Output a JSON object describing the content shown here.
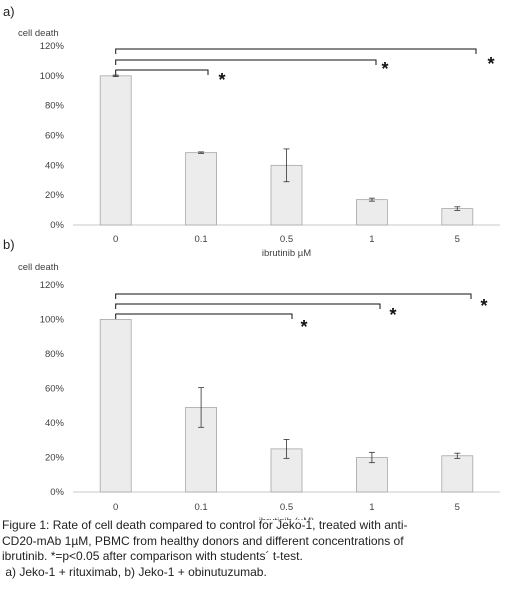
{
  "chart_data": [
    {
      "panel": "a)",
      "type": "bar",
      "ylabel": "cell death",
      "xlabel": "ibrutinib µM",
      "categories": [
        "0",
        "0.1",
        "0.5",
        "1",
        "5"
      ],
      "values": [
        100,
        48.5,
        40,
        17,
        11
      ],
      "errors": [
        0.5,
        0.5,
        11,
        1,
        1.2
      ],
      "ylim": [
        0,
        120
      ],
      "yticks": [
        "0%",
        "20%",
        "40%",
        "60%",
        "80%",
        "100%",
        "120%"
      ],
      "grid": false,
      "significance": [
        {
          "from": "0",
          "to": "0.1",
          "label": "*"
        },
        {
          "from": "0",
          "to": "1",
          "label": "*"
        },
        {
          "from": "0",
          "to": "5",
          "label": "*"
        }
      ]
    },
    {
      "panel": "b)",
      "type": "bar",
      "ylabel": "cell death",
      "xlabel": "ibrutinib (µM)",
      "categories": [
        "0",
        "0.1",
        "0.5",
        "1",
        "5"
      ],
      "values": [
        100,
        49,
        25,
        20,
        21
      ],
      "errors": [
        0,
        11.5,
        5.5,
        3,
        1.5
      ],
      "ylim": [
        0,
        120
      ],
      "yticks": [
        "0%",
        "20%",
        "40%",
        "60%",
        "80%",
        "100%",
        "120%"
      ],
      "grid": false,
      "significance": [
        {
          "from": "0",
          "to": "0.5",
          "label": "*"
        },
        {
          "from": "0",
          "to": "1",
          "label": "*"
        },
        {
          "from": "0",
          "to": "5",
          "label": "*"
        }
      ]
    }
  ],
  "caption": {
    "line1": "Figure 1: Rate of cell death compared to control for Jeko-1, treated with anti-",
    "line2": "CD20-mAb 1µM, PBMC from healthy donors  and different concentrations of",
    "line3": "ibrutinib.  *=p<0.05 after comparison with students´ t-test.",
    "line4": " a) Jeko-1 + rituximab, b) Jeko-1 + obinutuzumab."
  },
  "colors": {
    "bar_fill": "#ececec",
    "bar_stroke": "#a6a6a6",
    "axis": "#c8c8c8",
    "bracket": "#111111"
  }
}
